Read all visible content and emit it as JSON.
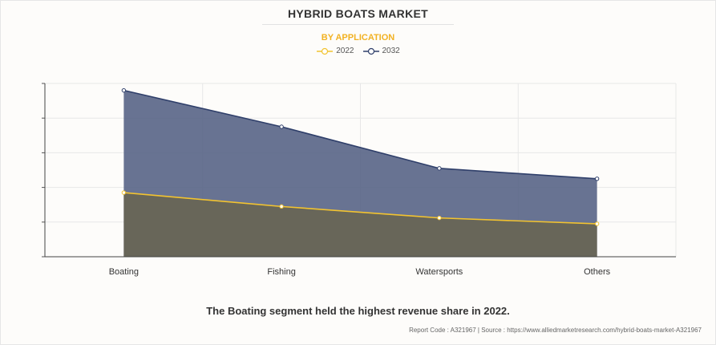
{
  "header": {
    "title": "HYBRID BOATS MARKET",
    "subtitle": "BY APPLICATION"
  },
  "colors": {
    "series_2022": "#f2c330",
    "series_2032": "#2f3f6a",
    "area_2032": "#5b6789",
    "area_2022": "#686659"
  },
  "chart_data": {
    "type": "area",
    "categories": [
      "Boating",
      "Fishing",
      "Watersports",
      "Others"
    ],
    "series": [
      {
        "name": "2022",
        "values": [
          1.85,
          1.45,
          1.12,
          0.95
        ]
      },
      {
        "name": "2032",
        "values": [
          4.8,
          3.75,
          2.55,
          2.25
        ]
      }
    ],
    "ylim": [
      0,
      5
    ],
    "yticks": [
      0,
      1,
      2,
      3,
      4,
      5
    ],
    "ytick_labels_visible": false,
    "grid": true,
    "legend": "top-center"
  },
  "caption": "The Boating segment held the highest revenue share in 2022.",
  "footer": "Report Code : A321967  |  Source : https://www.alliedmarketresearch.com/hybrid-boats-market-A321967"
}
